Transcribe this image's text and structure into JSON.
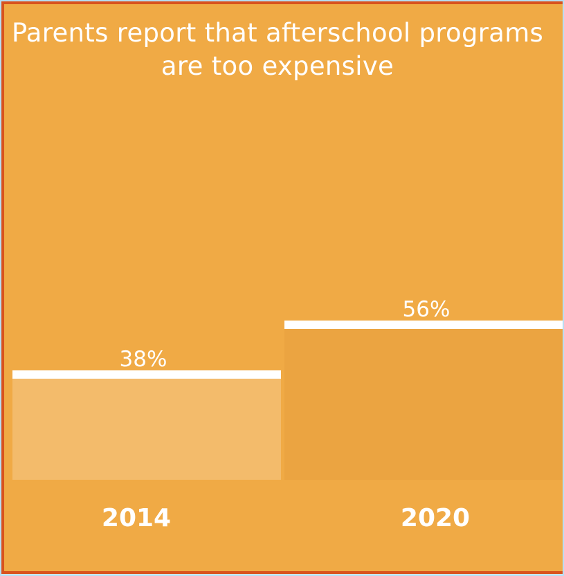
{
  "chart_data": {
    "type": "bar",
    "title": "Parents report that afterschool programs are too expensive",
    "categories": [
      "2014",
      "2020"
    ],
    "values": [
      38,
      56
    ],
    "value_labels": [
      "38%",
      "56%"
    ],
    "ylim": [
      0,
      100
    ],
    "grid": false,
    "legend": "none"
  },
  "colors": {
    "background": "#f0aa45",
    "border": "#d9531e",
    "bar_2014": "#f3bb6b",
    "bar_2020": "#eba441",
    "cap": "#ffffff"
  }
}
